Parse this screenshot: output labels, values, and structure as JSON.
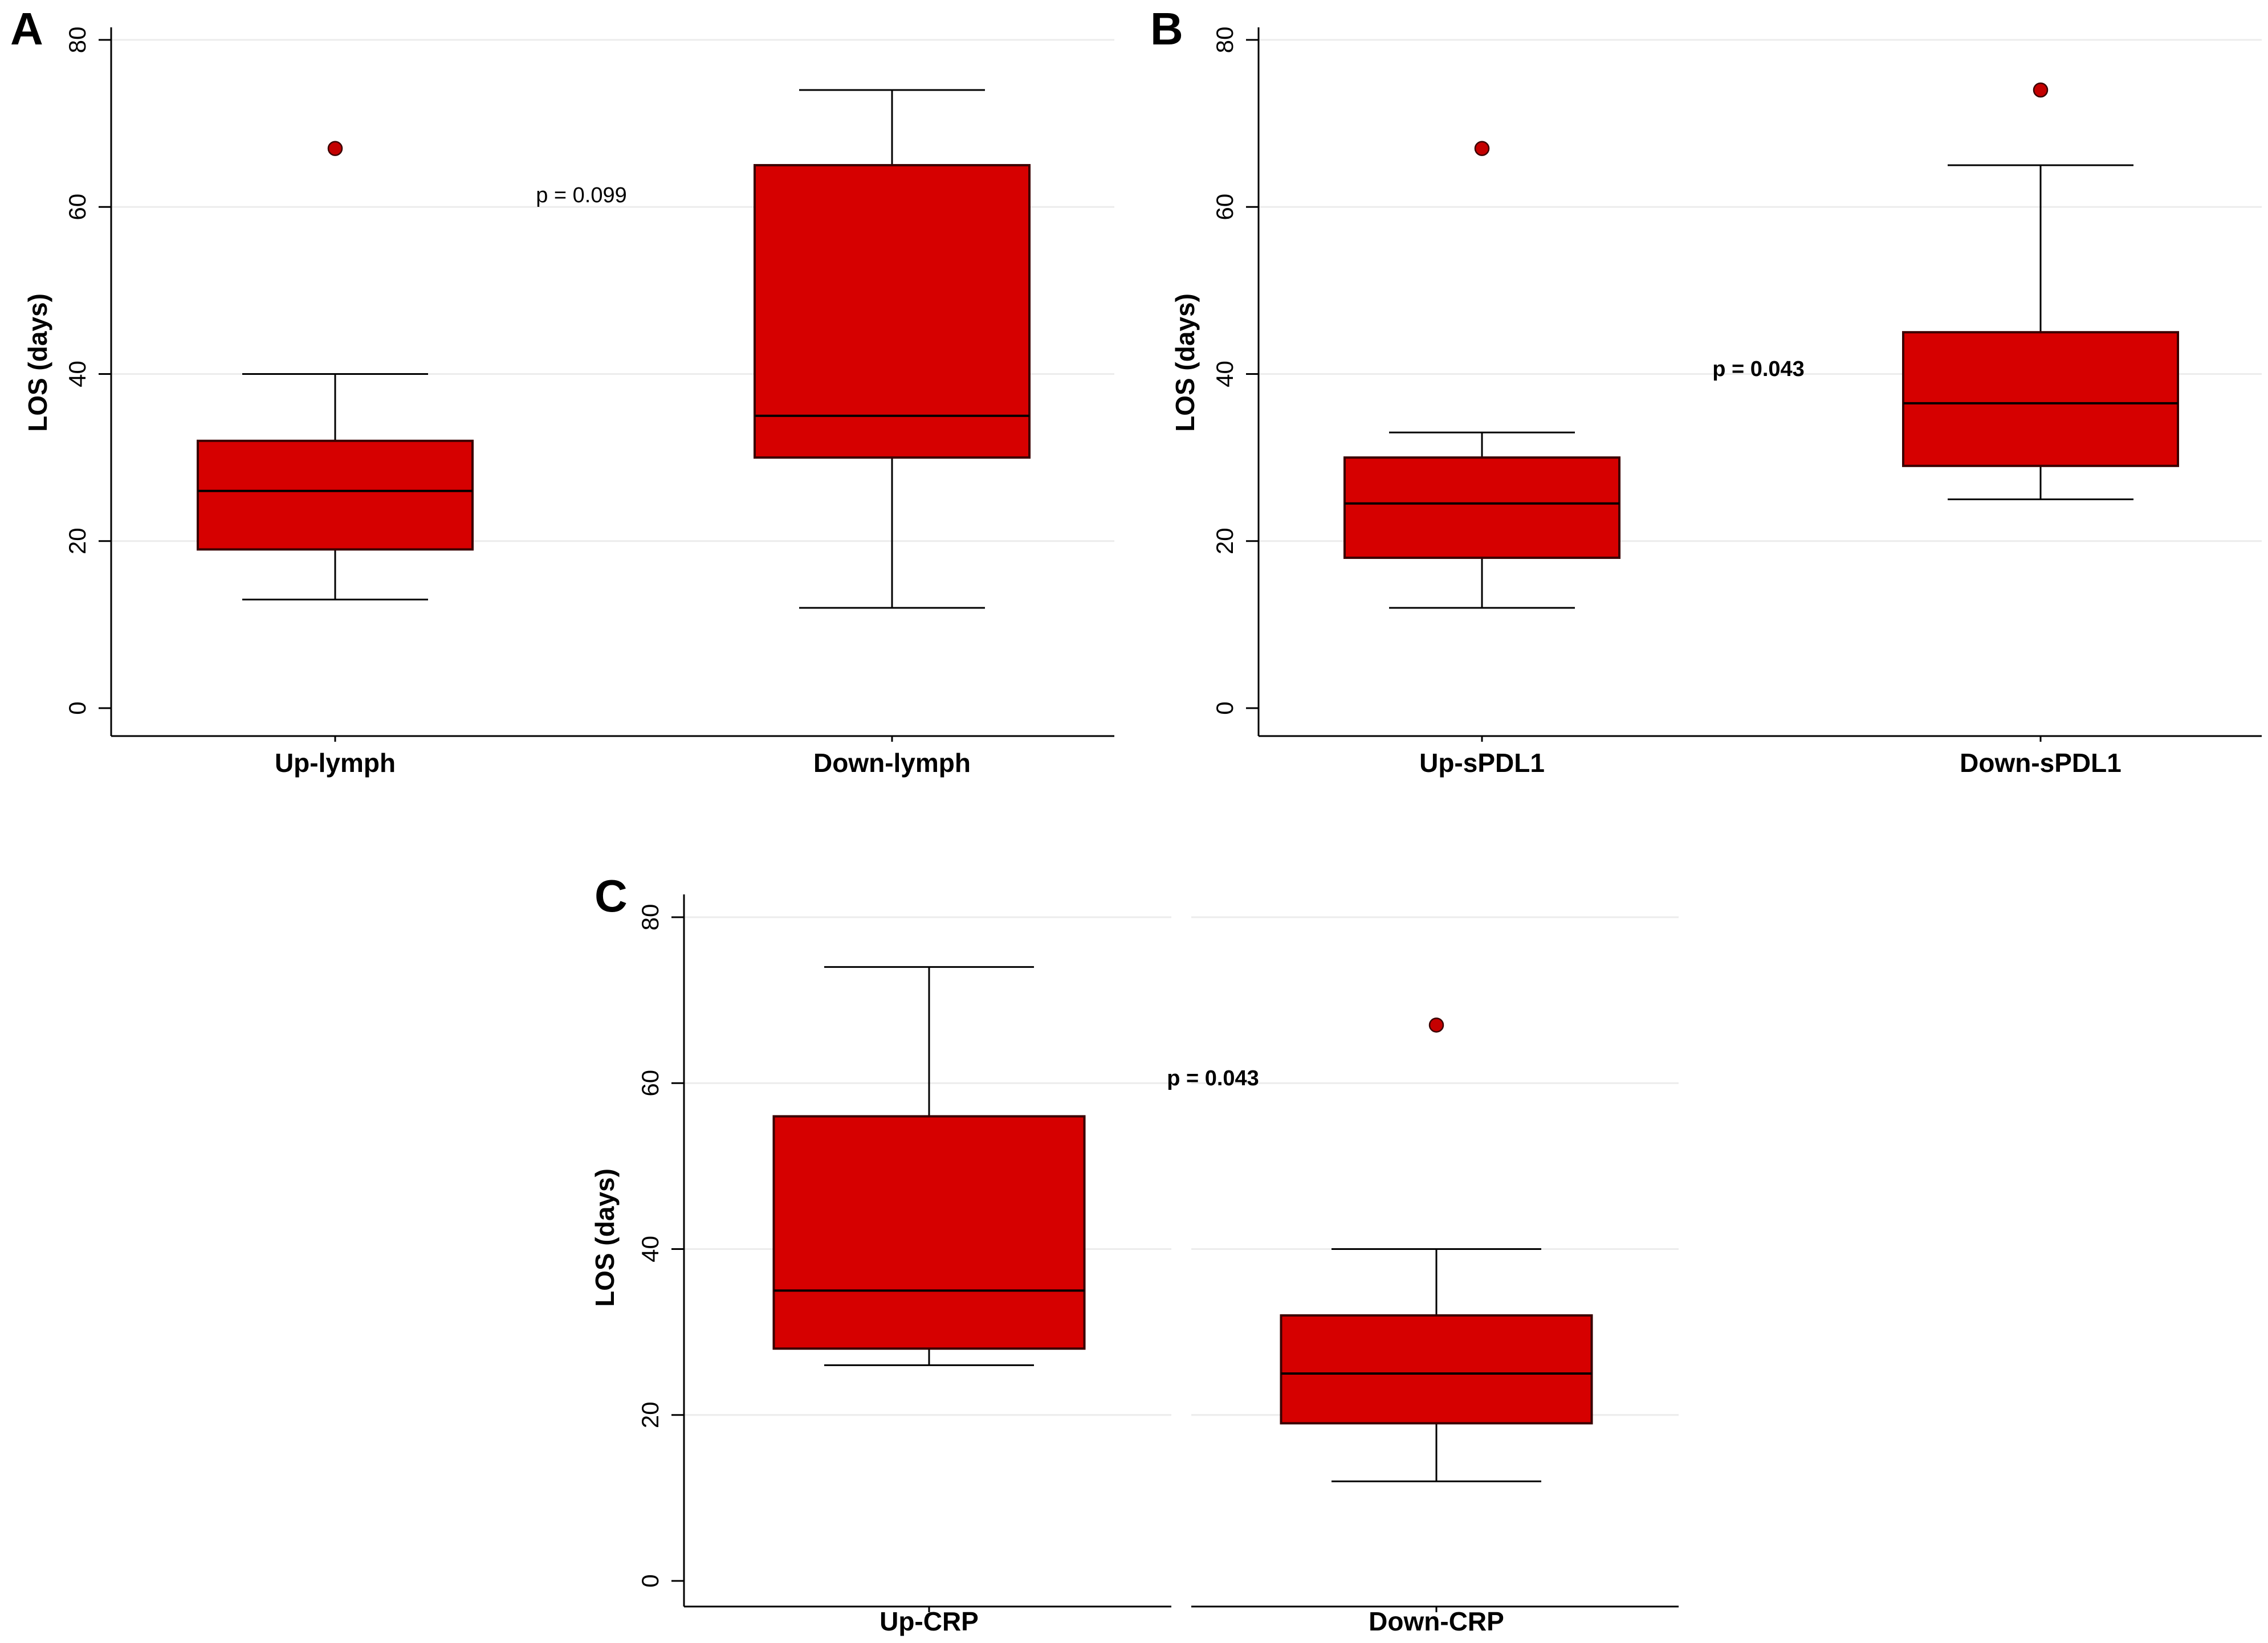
{
  "chart_data": [
    {
      "panel": "A",
      "type": "box",
      "ylabel": "LOS (days)",
      "ylim": [
        0,
        80
      ],
      "yticks": [
        "0",
        "20",
        "40",
        "60",
        "80"
      ],
      "grid": true,
      "annotation": "p =  0.099",
      "annotation_bold": false,
      "categories": [
        "Up-lymph",
        "Down-lymph"
      ],
      "boxes": [
        {
          "category": "Up-lymph",
          "whisker_low": 13,
          "q1": 19,
          "median": 26,
          "q3": 32,
          "whisker_high": 40,
          "outliers": [
            67
          ]
        },
        {
          "category": "Down-lymph",
          "whisker_low": 12,
          "q1": 30,
          "median": 35,
          "q3": 65,
          "whisker_high": 74,
          "outliers": []
        }
      ]
    },
    {
      "panel": "B",
      "type": "box",
      "ylabel": "LOS (days)",
      "ylim": [
        0,
        80
      ],
      "yticks": [
        "0",
        "20",
        "40",
        "60",
        "80"
      ],
      "grid": true,
      "annotation": "p = 0.043",
      "annotation_bold": true,
      "categories": [
        "Up-sPDL1",
        "Down-sPDL1"
      ],
      "boxes": [
        {
          "category": "Up-sPDL1",
          "whisker_low": 12,
          "q1": 18,
          "median": 24.5,
          "q3": 30,
          "whisker_high": 33,
          "outliers": [
            67
          ]
        },
        {
          "category": "Down-sPDL1",
          "whisker_low": 25,
          "q1": 29,
          "median": 36.5,
          "q3": 45,
          "whisker_high": 65,
          "outliers": [
            74
          ]
        }
      ]
    },
    {
      "panel": "C",
      "type": "box",
      "ylabel": "LOS (days)",
      "ylim": [
        0,
        80
      ],
      "yticks": [
        "0",
        "20",
        "40",
        "60",
        "80"
      ],
      "grid": true,
      "annotation": "p = 0.043",
      "annotation_bold": true,
      "categories": [
        "Up-CRP",
        "Down-CRP"
      ],
      "boxes": [
        {
          "category": "Up-CRP",
          "whisker_low": 26,
          "q1": 28,
          "median": 35,
          "q3": 56,
          "whisker_high": 74,
          "outliers": []
        },
        {
          "category": "Down-CRP",
          "whisker_low": 12,
          "q1": 19,
          "median": 25,
          "q3": 32,
          "whisker_high": 40,
          "outliers": [
            67
          ]
        }
      ]
    }
  ],
  "colors": {
    "box_fill": "#d60000",
    "box_stroke": "#3a0000",
    "outlier_fill": "#c40000",
    "line": "#000000",
    "grid": "#ececec",
    "axis": "#000000"
  }
}
